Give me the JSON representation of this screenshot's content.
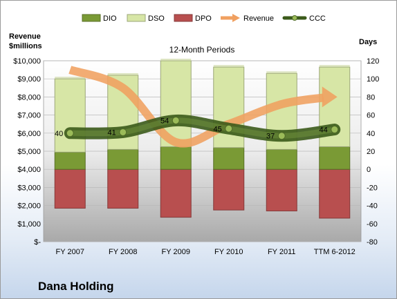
{
  "company": "Dana Holding",
  "chart_data": {
    "type": "bar",
    "title": "12-Month Periods",
    "categories": [
      "FY 2007",
      "FY 2008",
      "FY 2009",
      "FY 2010",
      "FY 2011",
      "TTM 6-2012"
    ],
    "left_axis": {
      "label_line1": "Revenue",
      "label_line2": "$millions",
      "range": [
        0,
        10000
      ],
      "ticks": [
        "$-",
        "$1,000",
        "$2,000",
        "$3,000",
        "$4,000",
        "$5,000",
        "$6,000",
        "$7,000",
        "$8,000",
        "$9,000",
        "$10,000"
      ]
    },
    "right_axis": {
      "label": "Days",
      "range": [
        -80,
        120
      ],
      "ticks": [
        "-80",
        "-60",
        "-40",
        "-20",
        "0",
        "20",
        "40",
        "60",
        "80",
        "100",
        "120"
      ]
    },
    "legend_position": "top",
    "series": [
      {
        "name": "DIO",
        "axis": "right",
        "kind": "stacked-bar",
        "color": "#7a9a35",
        "values": [
          19,
          22,
          25,
          24,
          22,
          25
        ]
      },
      {
        "name": "DSO",
        "axis": "right",
        "kind": "stacked-bar",
        "color": "#d7e6a6",
        "values": [
          81,
          82,
          95,
          89,
          84,
          88
        ]
      },
      {
        "name": "DPO",
        "axis": "right",
        "kind": "negative-bar",
        "color": "#b84f4f",
        "values": [
          -43,
          -43,
          -53,
          -45,
          -46,
          -54
        ]
      },
      {
        "name": "Revenue",
        "axis": "left",
        "kind": "line",
        "color": "#f0a060",
        "values": [
          9500,
          8500,
          5500,
          6500,
          7600,
          8000
        ]
      },
      {
        "name": "CCC",
        "axis": "right",
        "kind": "line",
        "color": "#4d6a25",
        "values": [
          40,
          41,
          54,
          45,
          37,
          44
        ]
      }
    ],
    "ccc_labels": [
      "40",
      "41",
      "54",
      "45",
      "37",
      "44"
    ]
  }
}
